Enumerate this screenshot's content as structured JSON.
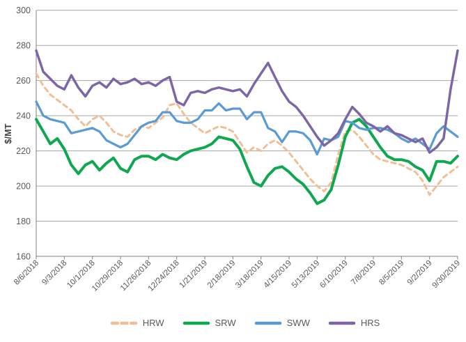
{
  "chart_data": {
    "type": "line",
    "title": "",
    "xlabel": "",
    "ylabel": "$/MT",
    "ylim": [
      160,
      300
    ],
    "yticks": [
      160,
      180,
      200,
      220,
      240,
      260,
      280,
      300
    ],
    "grid": "horizontal",
    "legend_position": "bottom",
    "x_sampling": "weekly estimates, week 0 = 8/6/2018, ticks every 4 weeks",
    "x_tick_labels": [
      "8/6/2018",
      "9/3/2018",
      "10/1/2018",
      "10/29/2018",
      "11/26/2018",
      "12/24/2018",
      "1/21/2019",
      "2/18/2019",
      "3/18/2019",
      "4/15/2019",
      "5/13/2019",
      "6/10/2019",
      "7/8/2019",
      "8/5/2019",
      "9/2/2019",
      "9/30/2019"
    ],
    "theme": {
      "background": "#FFFFFF",
      "grid_color": "#A6A6A6",
      "axis_color": "#7F7F7F",
      "text_color": "#595959",
      "axis_title_color": "#404040"
    },
    "series": [
      {
        "name": "HRW",
        "color": "#F2BF93",
        "style": "dashed",
        "dash": "6.5 5.5",
        "stroke_width": 3,
        "values": [
          264,
          257,
          252,
          249,
          246,
          243,
          238,
          234,
          238,
          240,
          236,
          231,
          229,
          228,
          232,
          234,
          233,
          236,
          239,
          246,
          247,
          241,
          236,
          233,
          230,
          232,
          234,
          233,
          231,
          225,
          219,
          222,
          220,
          224,
          226,
          223,
          219,
          214,
          209,
          204,
          200,
          197,
          202,
          218,
          231,
          232,
          228,
          223,
          218,
          215,
          214,
          213,
          212,
          210,
          208,
          203,
          195,
          200,
          205,
          208,
          211
        ]
      },
      {
        "name": "SRW",
        "color": "#0FA750",
        "style": "solid",
        "dash": "",
        "stroke_width": 4,
        "values": [
          238,
          231,
          224,
          227,
          221,
          212,
          207,
          212,
          214,
          209,
          213,
          216,
          210,
          208,
          215,
          217,
          217,
          215,
          218,
          216,
          215,
          218,
          220,
          221,
          222,
          224,
          228,
          227,
          226,
          221,
          211,
          202,
          200,
          206,
          210,
          211,
          208,
          204,
          201,
          196,
          190,
          192,
          198,
          212,
          228,
          236,
          238,
          234,
          228,
          222,
          217,
          215,
          215,
          214,
          211,
          209,
          203,
          214,
          214,
          213,
          217
        ]
      },
      {
        "name": "SWW",
        "color": "#5B9BD5",
        "style": "solid",
        "dash": "",
        "stroke_width": 3.25,
        "values": [
          248,
          240,
          238,
          237,
          236,
          230,
          231,
          232,
          233,
          231,
          226,
          224,
          222,
          224,
          229,
          234,
          236,
          237,
          242,
          242,
          237,
          236,
          236,
          238,
          243,
          243,
          247,
          243,
          244,
          244,
          238,
          242,
          242,
          233,
          231,
          225,
          231,
          231,
          230,
          226,
          218,
          227,
          226,
          228,
          237,
          236,
          233,
          232,
          233,
          233,
          232,
          230,
          227,
          225,
          227,
          224,
          221,
          230,
          234,
          231,
          228
        ]
      },
      {
        "name": "HRS",
        "color": "#7D66A5",
        "style": "solid",
        "dash": "",
        "stroke_width": 3.5,
        "values": [
          277,
          265,
          261,
          257,
          255,
          263,
          256,
          251,
          257,
          259,
          256,
          261,
          258,
          259,
          261,
          258,
          259,
          257,
          260,
          262,
          248,
          246,
          253,
          254,
          253,
          255,
          256,
          255,
          254,
          255,
          251,
          258,
          264,
          270,
          262,
          254,
          248,
          245,
          240,
          234,
          228,
          223,
          226,
          230,
          238,
          245,
          241,
          236,
          234,
          231,
          234,
          230,
          229,
          227,
          225,
          227,
          219,
          222,
          227,
          255,
          277
        ]
      }
    ]
  }
}
